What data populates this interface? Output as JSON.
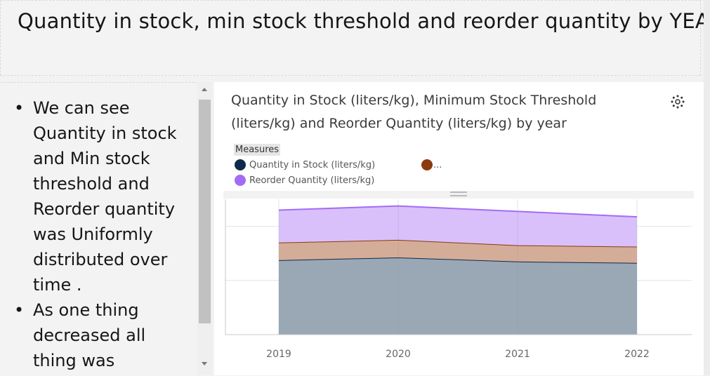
{
  "page": {
    "title": "Quantity in stock, min stock threshold and reorder quantity by YEAR"
  },
  "notes": {
    "bullets": [
      "We can see Quantity in stock and Min stock threshold and Reorder quantity was Uniformly distributed over time .",
      "As one thing decreased all thing was"
    ]
  },
  "chart": {
    "title": "Quantity in Stock (liters/kg), Minimum Stock Threshold (liters/kg) and Reorder Quantity (liters/kg) by year",
    "legend_title": "Measures",
    "legend_items": [
      {
        "label": "Quantity in Stock (liters/kg)",
        "color": "#0e2a4a"
      },
      {
        "label": "...",
        "color": "#8b3a0f"
      },
      {
        "label": "Reorder Quantity (liters/kg)",
        "color": "#a36cf5"
      }
    ],
    "icons": {
      "settings": "settings-icon"
    }
  },
  "chart_data": {
    "type": "area",
    "stacked": true,
    "title": "Quantity in Stock (liters/kg), Minimum Stock Threshold (liters/kg) and Reorder Quantity (liters/kg) by year",
    "x": [
      "2019",
      "2020",
      "2021",
      "2022"
    ],
    "series": [
      {
        "name": "Quantity in Stock (liters/kg)",
        "values": [
          55,
          57,
          54,
          53
        ],
        "color": "#0e2a4a",
        "fill": "#9aa8b6"
      },
      {
        "name": "Minimum Stock Threshold (liters/kg)",
        "values": [
          13,
          13,
          12,
          12
        ],
        "color": "#8b3a0f",
        "fill": "#d4ad98"
      },
      {
        "name": "Reorder Quantity (liters/kg)",
        "values": [
          24,
          25,
          25,
          22
        ],
        "color": "#a36cf5",
        "fill": "#d9c0fb"
      }
    ],
    "ylim": [
      0,
      100
    ],
    "grid": true,
    "legend": "top-left"
  }
}
